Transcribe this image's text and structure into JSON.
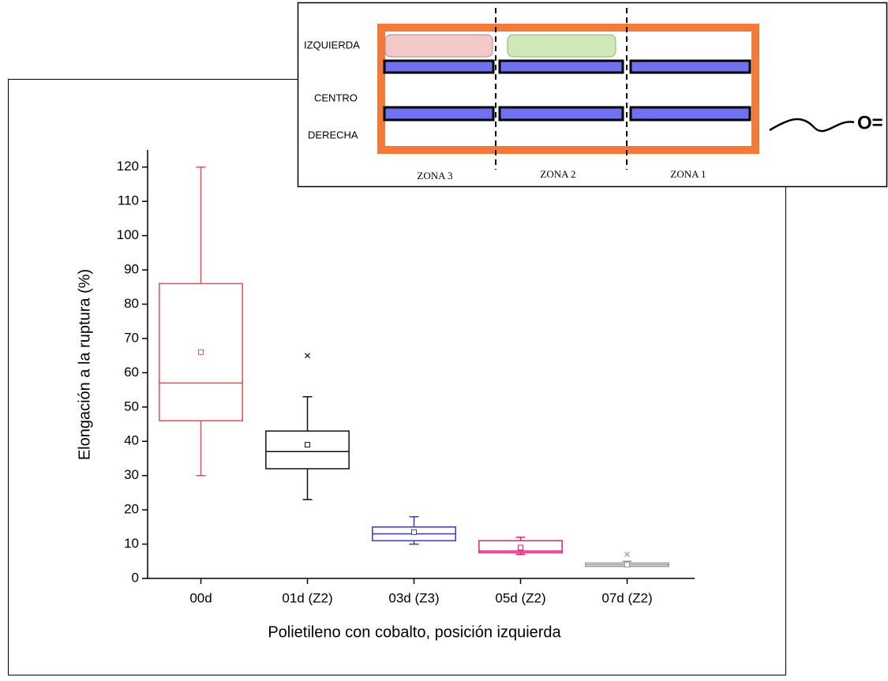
{
  "chart_data": {
    "type": "box",
    "x_label": "Polietileno con cobalto, posición izquierda",
    "y_label": "Elongación a la ruptura (%)",
    "categories": [
      "00d",
      "01d (Z2)",
      "03d (Z3)",
      "05d (Z2)",
      "07d (Z2)"
    ],
    "boxes": [
      {
        "low": 30,
        "q1": 46,
        "median": 57,
        "q3": 86,
        "high": 120,
        "mean": 66,
        "color": "#e0505a"
      },
      {
        "low": 23,
        "q1": 32,
        "median": 37,
        "q3": 43,
        "high": 53,
        "mean": 39,
        "outliers": [
          65
        ],
        "color": "#111111"
      },
      {
        "low": 10,
        "q1": 11,
        "median": 13,
        "q3": 15,
        "high": 18,
        "mean": 13.5,
        "color": "#3b3bb0"
      },
      {
        "low": 7,
        "q1": 7.5,
        "median": 8,
        "q3": 11,
        "high": 12,
        "mean": 9,
        "color": "#e0206a"
      },
      {
        "low": 3.5,
        "q1": 3.5,
        "median": 4,
        "q3": 4.5,
        "high": 5,
        "mean": 4,
        "outliers": [
          7
        ],
        "color": "#999999"
      }
    ],
    "ylim": [
      0,
      125
    ],
    "yticks": [
      0,
      10,
      20,
      30,
      40,
      50,
      60,
      70,
      80,
      90,
      100,
      110,
      120
    ]
  },
  "inset": {
    "rows": [
      "IZQUIERDA",
      "CENTRO",
      "DERECHA"
    ],
    "zones": [
      "ZONA 3",
      "ZONA 2",
      "ZONA 1"
    ],
    "symbol": "O="
  }
}
